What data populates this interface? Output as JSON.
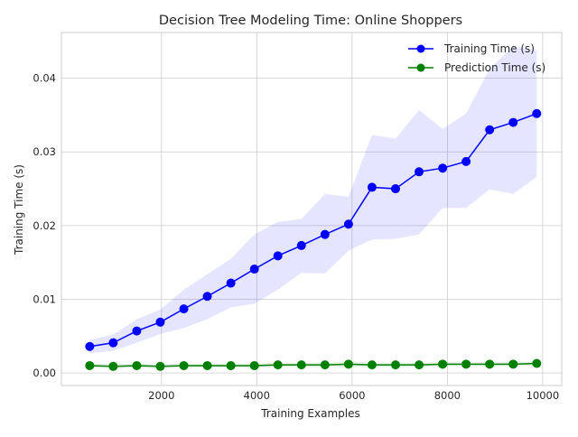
{
  "chart_data": {
    "type": "line",
    "title": "Decision Tree Modeling Time: Online Shoppers",
    "xlabel": "Training Examples",
    "ylabel": "Training Time (s)",
    "xlim": [
      -100,
      10400
    ],
    "ylim": [
      -0.0017,
      0.0462
    ],
    "xticks": [
      2000,
      4000,
      6000,
      8000,
      10000
    ],
    "xtick_labels": [
      "2000",
      "4000",
      "6000",
      "8000",
      "10000"
    ],
    "yticks": [
      0.0,
      0.01,
      0.02,
      0.03,
      0.04
    ],
    "ytick_labels": [
      "0.00",
      "0.01",
      "0.02",
      "0.03",
      "0.04"
    ],
    "grid": true,
    "legend_position": "top-right",
    "x": [
      494,
      987,
      1481,
      1975,
      2469,
      2962,
      3456,
      3950,
      4443,
      4937,
      5431,
      5925,
      6418,
      6912,
      7406,
      7900,
      8393,
      8887,
      9381,
      9875
    ],
    "series": [
      {
        "name": "Training Time (s)",
        "color": "#0000ff",
        "band_color": "#0000ff",
        "marker": "circle",
        "values": [
          0.0036,
          0.0041,
          0.0057,
          0.0069,
          0.0087,
          0.0104,
          0.0122,
          0.0141,
          0.0159,
          0.0173,
          0.0188,
          0.0202,
          0.0252,
          0.025,
          0.0273,
          0.0278,
          0.0287,
          0.033,
          0.034,
          0.0352
        ],
        "band_upper": [
          0.0045,
          0.0052,
          0.0073,
          0.0086,
          0.0113,
          0.0134,
          0.0155,
          0.0188,
          0.0205,
          0.0209,
          0.0243,
          0.0239,
          0.0323,
          0.0318,
          0.0357,
          0.0331,
          0.0352,
          0.0413,
          0.0443,
          0.0438
        ],
        "band_lower": [
          0.0027,
          0.003,
          0.0041,
          0.0053,
          0.0061,
          0.0073,
          0.0089,
          0.0094,
          0.0113,
          0.0136,
          0.0135,
          0.0166,
          0.0181,
          0.0182,
          0.0188,
          0.0224,
          0.0224,
          0.0249,
          0.0243,
          0.0266
        ]
      },
      {
        "name": "Prediction Time (s)",
        "color": "#008000",
        "band_color": "#008000",
        "marker": "circle",
        "values": [
          0.001,
          0.0009,
          0.001,
          0.0009,
          0.001,
          0.001,
          0.001,
          0.001,
          0.0011,
          0.0011,
          0.0011,
          0.0012,
          0.0011,
          0.0011,
          0.0011,
          0.0012,
          0.0012,
          0.0012,
          0.0012,
          0.0013
        ],
        "band_upper": [
          0.0013,
          0.0012,
          0.0013,
          0.0012,
          0.0013,
          0.0013,
          0.0013,
          0.0013,
          0.0014,
          0.0014,
          0.0014,
          0.0016,
          0.0014,
          0.0014,
          0.0014,
          0.0015,
          0.0015,
          0.0015,
          0.0015,
          0.0016
        ],
        "band_lower": [
          0.0007,
          0.0006,
          0.0007,
          0.0006,
          0.0007,
          0.0007,
          0.0007,
          0.0007,
          0.0008,
          0.0008,
          0.0008,
          0.0008,
          0.0008,
          0.0008,
          0.0008,
          0.0009,
          0.0009,
          0.0009,
          0.0009,
          0.001
        ]
      }
    ]
  }
}
